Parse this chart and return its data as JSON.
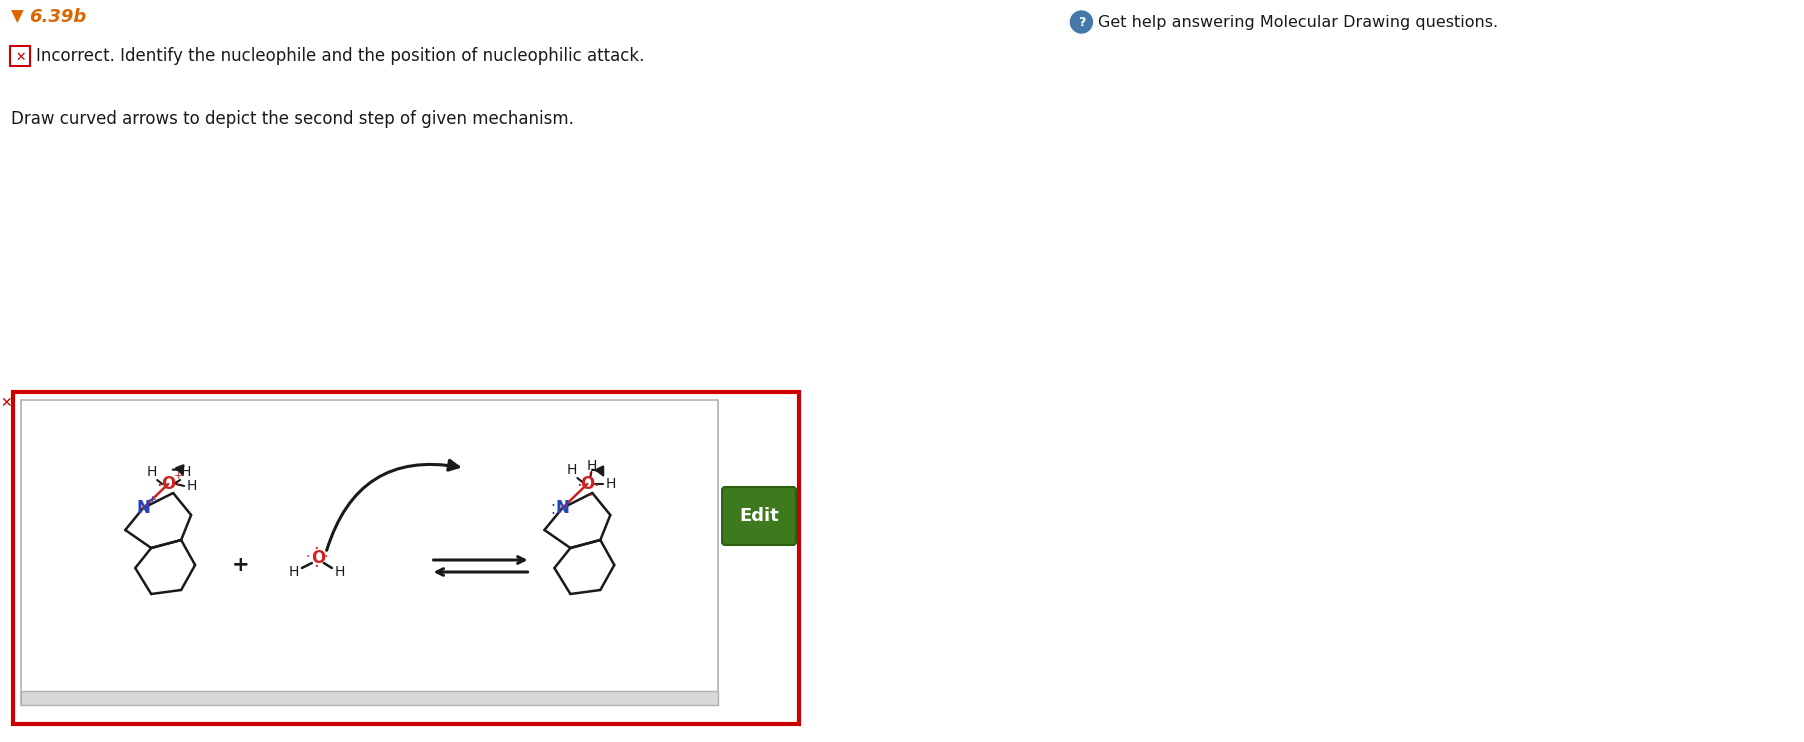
{
  "title": "6.39b",
  "title_color": "#dd6600",
  "help_text": "Get help answering Molecular Drawing questions.",
  "help_icon_color": "#4477aa",
  "error_text": "Incorrect. Identify the nucleophile and the position of nucleophilic attack.",
  "instruction_text": "Draw curved arrows to depict the second step of given mechanism.",
  "bg_color": "#ffffff",
  "outer_box_color": "#cc0000",
  "edit_button_color": "#3d7a1e",
  "edit_button_text": "Edit",
  "red_color": "#cc2222",
  "blue_color": "#2244bb",
  "black_color": "#1a1a1a",
  "gray_color": "#888888",
  "figw": 18.04,
  "figh": 7.42,
  "dpi": 100
}
